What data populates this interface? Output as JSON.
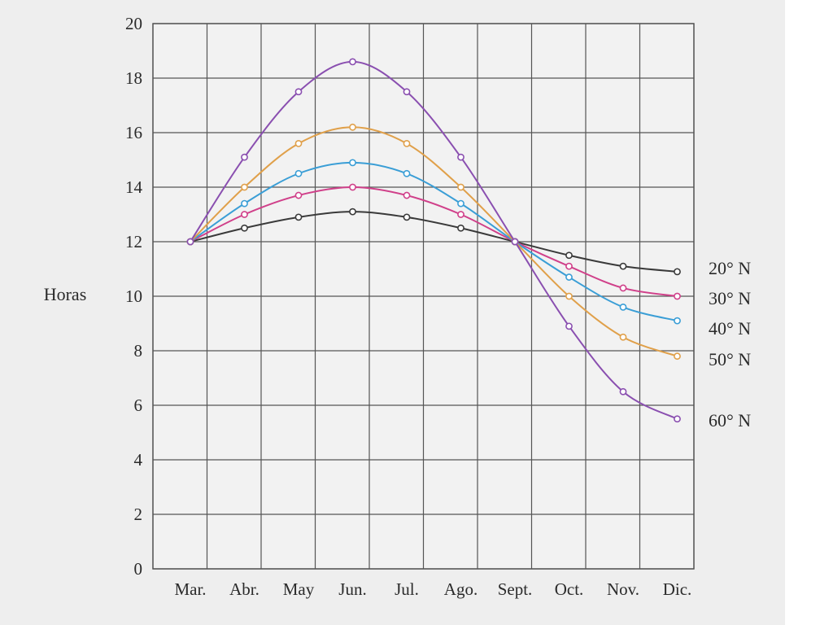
{
  "chart_data": {
    "type": "line",
    "title": "",
    "ylabel": "Horas",
    "xlabel": "",
    "categories": [
      "Mar.",
      "Abr.",
      "May",
      "Jun.",
      "Jul.",
      "Ago.",
      "Sept.",
      "Oct.",
      "Nov.",
      "Dic."
    ],
    "ylim": [
      0,
      20
    ],
    "yticks": [
      0,
      2,
      4,
      6,
      8,
      10,
      12,
      14,
      16,
      18,
      20
    ],
    "grid": true,
    "x_starts_at": "Mar.",
    "series": [
      {
        "name": "20° N",
        "color": "#3a3a3a",
        "values": [
          12.0,
          12.5,
          12.9,
          13.1,
          12.9,
          12.5,
          12.0,
          11.5,
          11.1,
          10.9
        ]
      },
      {
        "name": "30° N",
        "color": "#d0408a",
        "values": [
          12.0,
          13.0,
          13.7,
          14.0,
          13.7,
          13.0,
          12.0,
          11.1,
          10.3,
          10.0
        ]
      },
      {
        "name": "40° N",
        "color": "#3a9ed6",
        "values": [
          12.0,
          13.4,
          14.5,
          14.9,
          14.5,
          13.4,
          12.0,
          10.7,
          9.6,
          9.1
        ]
      },
      {
        "name": "50° N",
        "color": "#e0a04a",
        "values": [
          12.0,
          14.0,
          15.6,
          16.2,
          15.6,
          14.0,
          12.0,
          10.0,
          8.5,
          7.8
        ]
      },
      {
        "name": "60° N",
        "color": "#8a4fb0",
        "values": [
          12.0,
          15.1,
          17.5,
          18.6,
          17.5,
          15.1,
          12.0,
          8.9,
          6.5,
          5.5
        ]
      }
    ]
  }
}
